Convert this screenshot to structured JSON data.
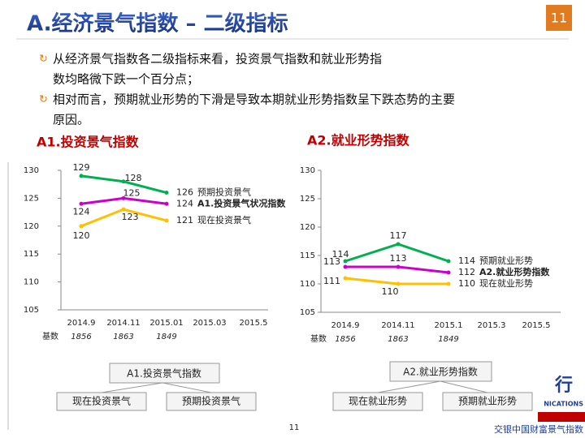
{
  "header": {
    "title": "A.经济景气指数 – 二级指标",
    "page_badge": "11"
  },
  "bullets": [
    [
      "从经济景气指数各二级指标来看，投资景气指数和就业形势指",
      "数均略微下跌一个百分点；"
    ],
    [
      "相对而言，预期就业形势的下滑是导致本期就业形势指数呈下跌态势的主要",
      "原因。"
    ]
  ],
  "chart_data": [
    {
      "type": "line",
      "title": "A1.投资景气指数",
      "categories": [
        "2014.9",
        "2014.11",
        "2015.01",
        "2015.03",
        "2015.5"
      ],
      "series": [
        {
          "name": "预期投资景气",
          "color": "#00b050",
          "values": [
            129,
            128,
            126,
            null,
            null
          ]
        },
        {
          "name": "A1.投资景气状况指数",
          "color": "#cc00cc",
          "values": [
            124,
            125,
            124,
            null,
            null
          ]
        },
        {
          "name": "现在投资景气",
          "color": "#ffc000",
          "values": [
            120,
            123,
            121,
            null,
            null
          ]
        }
      ],
      "ylim": [
        105,
        130
      ],
      "yticks": [
        105,
        110,
        115,
        120,
        125,
        130
      ],
      "base_label": "基数",
      "base_values": [
        1856,
        1863,
        1849
      ]
    },
    {
      "type": "line",
      "title": "A2.就业形势指数",
      "categories": [
        "2014.9",
        "2014.11",
        "2015.1",
        "2015.3",
        "2015.5"
      ],
      "series": [
        {
          "name": "预期就业形势",
          "color": "#00b050",
          "values": [
            114,
            117,
            114,
            null,
            null
          ]
        },
        {
          "name": "A2.就业形势指数",
          "color": "#cc00cc",
          "values": [
            113,
            113,
            112,
            null,
            null
          ]
        },
        {
          "name": "现在就业形势",
          "color": "#ffc000",
          "values": [
            111,
            110,
            110,
            null,
            null
          ]
        }
      ],
      "ylim": [
        105,
        130
      ],
      "yticks": [
        105,
        110,
        115,
        120,
        125,
        130
      ],
      "base_label": "基数",
      "base_values": [
        1856,
        1863,
        1849
      ]
    }
  ],
  "diagram": [
    {
      "root": "A1.投资景气指数",
      "children": [
        "现在投资景气",
        "预期投资景气"
      ]
    },
    {
      "root": "A2.就业形势指数",
      "children": [
        "现在就业形势",
        "预期就业形势"
      ]
    }
  ],
  "footer": {
    "page_number": "11",
    "logo_char": "行",
    "logo_en": "NICATIONS",
    "brand": "交银中国财富景气指数"
  }
}
